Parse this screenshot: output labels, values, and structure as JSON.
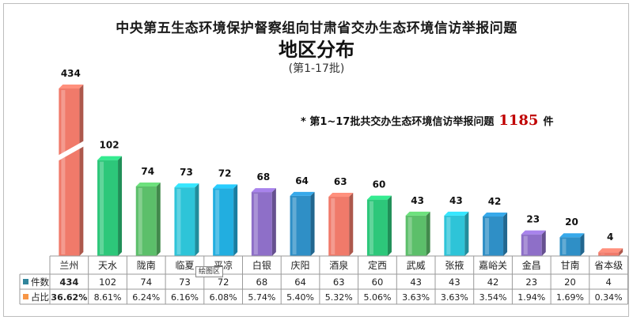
{
  "title": "中央第五生态环境保护督察组向甘肃省交办生态环境信访举报问题",
  "subtitle": "地区分布",
  "batch_label": "(第1-17批)",
  "total_note": {
    "prefix": "* 第1~17批共交办生态环境信访举报问题",
    "value": "1185",
    "suffix": "件"
  },
  "tooltip": "绘图区",
  "chart_data": {
    "type": "bar",
    "categories": [
      "兰州",
      "天水",
      "陇南",
      "临夏",
      "平凉",
      "白银",
      "庆阳",
      "酒泉",
      "定西",
      "武威",
      "张掖",
      "嘉峪关",
      "金昌",
      "甘南",
      "省本级"
    ],
    "series": [
      {
        "name": "件数",
        "values": [
          434,
          102,
          74,
          73,
          72,
          68,
          64,
          63,
          60,
          43,
          43,
          42,
          23,
          20,
          4
        ],
        "data_labels": [
          "434",
          "102",
          "74",
          "73",
          "72",
          "68",
          "64",
          "63",
          "60",
          "43",
          "43",
          "42",
          "23",
          "20",
          "4"
        ],
        "marker_color": "#31859c"
      },
      {
        "name": "占比",
        "values": [
          "36.62%",
          "8.61%",
          "6.24%",
          "6.16%",
          "6.08%",
          "5.74%",
          "5.40%",
          "5.32%",
          "5.06%",
          "3.63%",
          "3.63%",
          "3.54%",
          "1.94%",
          "1.69%",
          "0.34%"
        ],
        "marker_color": "#f79646"
      }
    ],
    "bar_colors": [
      "#f07a6a",
      "#2dc77a",
      "#5cbf6a",
      "#2ec4d8",
      "#22aee0",
      "#8e6fc8",
      "#2f8fc6",
      "#f07a6a",
      "#2dc77a",
      "#5cbf6a",
      "#2ec4d8",
      "#2f8fc6",
      "#8e6fc8",
      "#2f8fc6",
      "#f07a6a"
    ],
    "axis_break": {
      "value_axis_broken": true,
      "broken_category": "兰州"
    },
    "ylim": [
      0,
      120
    ],
    "grid": false,
    "legend": "table-below"
  }
}
